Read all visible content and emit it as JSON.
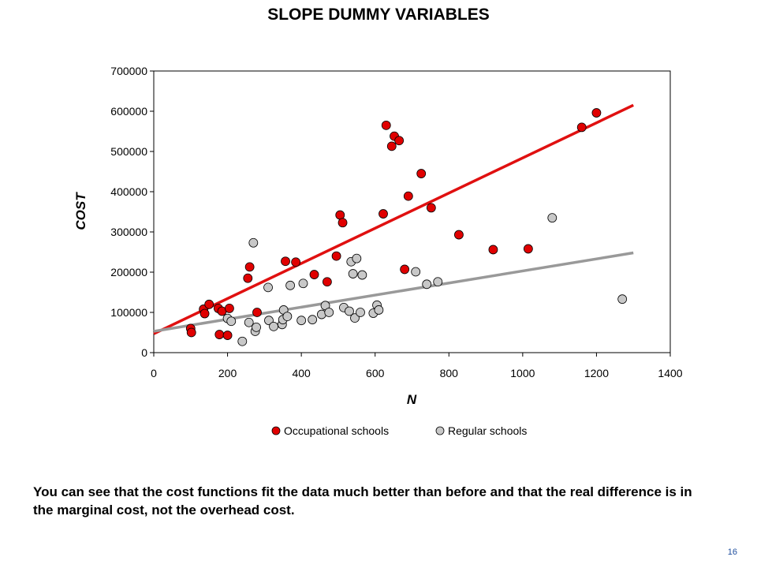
{
  "slide": {
    "title": "SLOPE DUMMY VARIABLES",
    "caption": "You can see that the cost functions fit the data much better than before and that the real difference is in the marginal cost, not the overhead cost.",
    "page_number": "16"
  },
  "colors": {
    "occupational": "#e00000",
    "regular": "#c8c8c8",
    "regular_line": "#999999",
    "occupational_line": "#e01010"
  },
  "chart_data": {
    "type": "scatter",
    "title": "",
    "xlabel": "N",
    "ylabel": "COST",
    "xlim": [
      0,
      1400
    ],
    "ylim": [
      0,
      700000
    ],
    "x_ticks": [
      0,
      200,
      400,
      600,
      800,
      1000,
      1200,
      1400
    ],
    "y_ticks": [
      0,
      100000,
      200000,
      300000,
      400000,
      500000,
      600000,
      700000
    ],
    "x_tick_labels": [
      "0",
      "200",
      "400",
      "600",
      "800",
      "1000",
      "1200",
      "1400"
    ],
    "y_tick_labels": [
      "0",
      "100000",
      "200000",
      "300000",
      "400000",
      "500000",
      "600000",
      "700000"
    ],
    "grid": false,
    "legend_position": "bottom-center",
    "series": [
      {
        "name": "Occupational schools",
        "points": [
          [
            100,
            60000
          ],
          [
            102,
            50000
          ],
          [
            135,
            108000
          ],
          [
            138,
            97000
          ],
          [
            150,
            120000
          ],
          [
            175,
            110000
          ],
          [
            178,
            45000
          ],
          [
            185,
            103000
          ],
          [
            200,
            43000
          ],
          [
            205,
            110000
          ],
          [
            255,
            185000
          ],
          [
            260,
            213000
          ],
          [
            280,
            100000
          ],
          [
            357,
            227000
          ],
          [
            385,
            225000
          ],
          [
            435,
            194000
          ],
          [
            470,
            176000
          ],
          [
            495,
            240000
          ],
          [
            505,
            342000
          ],
          [
            512,
            323000
          ],
          [
            622,
            345000
          ],
          [
            630,
            565000
          ],
          [
            645,
            513000
          ],
          [
            652,
            538000
          ],
          [
            665,
            527000
          ],
          [
            680,
            207000
          ],
          [
            690,
            389000
          ],
          [
            725,
            445000
          ],
          [
            752,
            360000
          ],
          [
            827,
            293000
          ],
          [
            920,
            256000
          ],
          [
            1015,
            258000
          ],
          [
            1160,
            560000
          ],
          [
            1200,
            596000
          ]
        ]
      },
      {
        "name": "Regular schools",
        "points": [
          [
            200,
            85000
          ],
          [
            210,
            78000
          ],
          [
            240,
            28000
          ],
          [
            258,
            75000
          ],
          [
            270,
            273000
          ],
          [
            275,
            53000
          ],
          [
            278,
            63000
          ],
          [
            310,
            162000
          ],
          [
            312,
            80000
          ],
          [
            325,
            65000
          ],
          [
            348,
            70000
          ],
          [
            350,
            82000
          ],
          [
            352,
            106000
          ],
          [
            362,
            90000
          ],
          [
            370,
            167000
          ],
          [
            400,
            80000
          ],
          [
            405,
            172000
          ],
          [
            430,
            82000
          ],
          [
            455,
            95000
          ],
          [
            465,
            117000
          ],
          [
            475,
            100000
          ],
          [
            515,
            112000
          ],
          [
            530,
            103000
          ],
          [
            535,
            226000
          ],
          [
            540,
            196000
          ],
          [
            545,
            86000
          ],
          [
            550,
            234000
          ],
          [
            560,
            100000
          ],
          [
            565,
            193000
          ],
          [
            595,
            98000
          ],
          [
            605,
            118000
          ],
          [
            610,
            106000
          ],
          [
            710,
            201000
          ],
          [
            740,
            170000
          ],
          [
            770,
            176000
          ],
          [
            1080,
            335000
          ],
          [
            1270,
            133000
          ]
        ]
      }
    ],
    "fitted_lines": [
      {
        "name": "Occupational schools",
        "x": [
          0,
          1300
        ],
        "y": [
          47000,
          615000
        ]
      },
      {
        "name": "Regular schools",
        "x": [
          0,
          1300
        ],
        "y": [
          53000,
          248000
        ]
      }
    ]
  }
}
